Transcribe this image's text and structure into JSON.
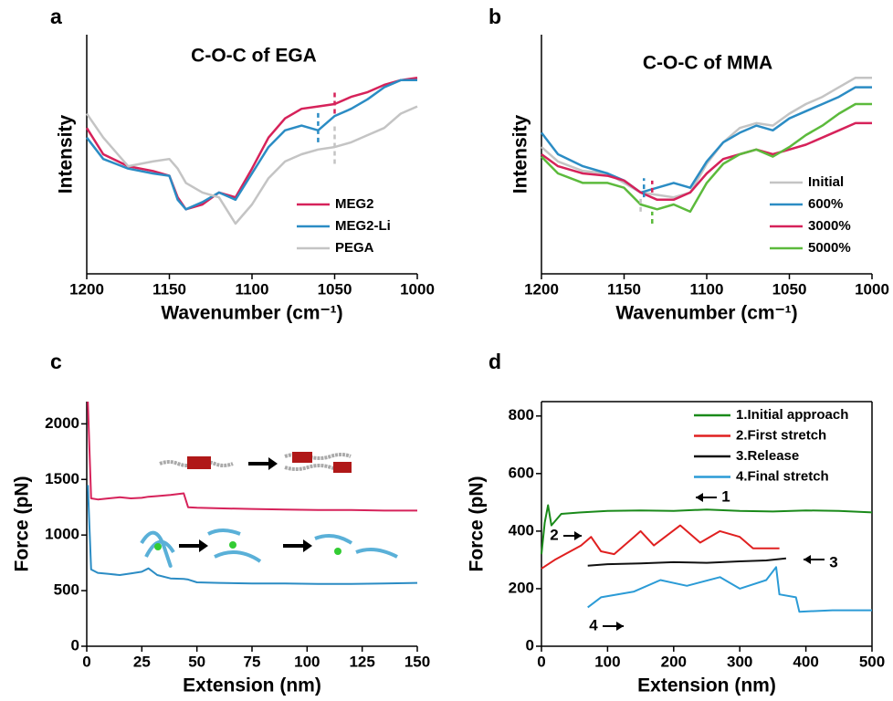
{
  "chart_data": [
    {
      "type": "line",
      "panel_label": "a",
      "title": "C-O-C of EGA",
      "xlabel": "Wavenumber (cm⁻¹)",
      "ylabel": "Intensity",
      "xlim": [
        1200,
        1000
      ],
      "xticks": [
        1200,
        1150,
        1100,
        1050,
        1000
      ],
      "ylim": [
        0,
        10
      ],
      "legend": "lower right",
      "box": false,
      "x": [
        1200,
        1190,
        1175,
        1160,
        1150,
        1145,
        1140,
        1130,
        1120,
        1110,
        1100,
        1090,
        1080,
        1070,
        1060,
        1050,
        1040,
        1030,
        1020,
        1010,
        1000
      ],
      "series": [
        {
          "name": "MEG2",
          "color": "#d6225a",
          "values": [
            6.1,
            5.0,
            4.5,
            4.3,
            4.1,
            3.2,
            2.7,
            2.9,
            3.4,
            3.2,
            4.4,
            5.7,
            6.5,
            6.9,
            7.0,
            7.1,
            7.4,
            7.6,
            7.9,
            8.1,
            8.2
          ]
        },
        {
          "name": "MEG2-Li",
          "color": "#2b8cc4",
          "values": [
            5.7,
            4.8,
            4.4,
            4.2,
            4.1,
            3.1,
            2.7,
            3.0,
            3.4,
            3.1,
            4.2,
            5.3,
            6.0,
            6.2,
            6.0,
            6.6,
            6.9,
            7.3,
            7.8,
            8.1,
            8.1
          ]
        },
        {
          "name": "PEGA",
          "color": "#c4c4c4",
          "values": [
            6.7,
            5.7,
            4.5,
            4.7,
            4.8,
            4.4,
            3.8,
            3.4,
            3.2,
            2.1,
            2.9,
            4.0,
            4.7,
            5.0,
            5.2,
            5.3,
            5.5,
            5.8,
            6.1,
            6.7,
            7.0
          ]
        }
      ],
      "guides": [
        {
          "x": 1060,
          "y": [
            5.5,
            6.8
          ],
          "color": "#2b8cc4"
        },
        {
          "x": 1050,
          "y": [
            6.7,
            7.7
          ],
          "color": "#d6225a"
        },
        {
          "x": 1050,
          "y": [
            4.6,
            6.3
          ],
          "color": "#c4c4c4"
        }
      ]
    },
    {
      "type": "line",
      "panel_label": "b",
      "title": "C-O-C of MMA",
      "xlabel": "Wavenumber (cm⁻¹)",
      "ylabel": "Intensity",
      "xlim": [
        1200,
        1000
      ],
      "xticks": [
        1200,
        1150,
        1100,
        1050,
        1000
      ],
      "ylim": [
        0,
        10
      ],
      "legend": "lower right",
      "box": false,
      "x": [
        1200,
        1190,
        1175,
        1160,
        1150,
        1140,
        1130,
        1120,
        1110,
        1100,
        1090,
        1080,
        1070,
        1060,
        1050,
        1040,
        1030,
        1020,
        1010,
        1000
      ],
      "series": [
        {
          "name": "Initial",
          "color": "#c4c4c4",
          "values": [
            5.3,
            4.7,
            4.3,
            4.2,
            3.8,
            3.4,
            3.3,
            3.2,
            3.4,
            4.6,
            5.5,
            6.1,
            6.3,
            6.2,
            6.7,
            7.1,
            7.4,
            7.8,
            8.2,
            8.2
          ]
        },
        {
          "name": "600%",
          "color": "#2b8cc4",
          "values": [
            5.9,
            5.0,
            4.5,
            4.2,
            3.9,
            3.4,
            3.6,
            3.8,
            3.6,
            4.7,
            5.5,
            5.9,
            6.2,
            6.0,
            6.5,
            6.8,
            7.1,
            7.4,
            7.8,
            7.8
          ]
        },
        {
          "name": "3000%",
          "color": "#d6225a",
          "values": [
            5.0,
            4.5,
            4.2,
            4.1,
            3.9,
            3.4,
            3.1,
            3.1,
            3.4,
            4.2,
            4.8,
            5.0,
            5.2,
            5.0,
            5.2,
            5.4,
            5.7,
            6.0,
            6.3,
            6.3
          ]
        },
        {
          "name": "5000%",
          "color": "#5cba3c",
          "values": [
            4.9,
            4.2,
            3.8,
            3.8,
            3.6,
            2.9,
            2.7,
            2.9,
            2.6,
            3.8,
            4.6,
            5.0,
            5.2,
            4.9,
            5.3,
            5.8,
            6.2,
            6.7,
            7.1,
            7.1
          ]
        }
      ],
      "guides": [
        {
          "x": 1138,
          "y": [
            3.2,
            4.0
          ],
          "color": "#2b8cc4"
        },
        {
          "x": 1140,
          "y": [
            2.6,
            3.2
          ],
          "color": "#c4c4c4"
        },
        {
          "x": 1133,
          "y": [
            3.4,
            3.9
          ],
          "color": "#d6225a"
        },
        {
          "x": 1133,
          "y": [
            2.1,
            2.6
          ],
          "color": "#5cba3c"
        }
      ]
    },
    {
      "type": "line",
      "panel_label": "c",
      "xlabel": "Extension (nm)",
      "ylabel": "Force (pN)",
      "xlim": [
        0,
        150
      ],
      "xticks": [
        0,
        25,
        50,
        75,
        100,
        125,
        150
      ],
      "ylim": [
        0,
        2200
      ],
      "yticks": [
        0,
        500,
        1000,
        1500,
        2000
      ],
      "box": false,
      "x": [
        0.5,
        2,
        5,
        10,
        15,
        20,
        25,
        28,
        32,
        38,
        44,
        46,
        50,
        60,
        75,
        90,
        105,
        120,
        135,
        150
      ],
      "series": [
        {
          "color": "#d6225a",
          "values": [
            2200,
            1330,
            1320,
            1330,
            1340,
            1330,
            1335,
            1345,
            1350,
            1360,
            1375,
            1250,
            1245,
            1240,
            1235,
            1230,
            1225,
            1225,
            1220,
            1220
          ]
        },
        {
          "color": "#2b8cc4",
          "values": [
            1450,
            690,
            660,
            650,
            640,
            655,
            670,
            700,
            640,
            610,
            605,
            600,
            575,
            570,
            565,
            565,
            560,
            560,
            565,
            570
          ]
        }
      ]
    },
    {
      "type": "line",
      "panel_label": "d",
      "xlabel": "Extension (nm)",
      "ylabel": "Force (pN)",
      "xlim": [
        0,
        500
      ],
      "xticks": [
        0,
        100,
        200,
        300,
        400,
        500
      ],
      "ylim": [
        0,
        850
      ],
      "yticks": [
        0,
        200,
        400,
        600,
        800
      ],
      "legend": "upper right",
      "box": true,
      "series": [
        {
          "name": "1.Initial approach",
          "color": "#1a8a1a",
          "x": [
            0,
            5,
            10,
            15,
            30,
            60,
            100,
            150,
            200,
            250,
            300,
            350,
            400,
            450,
            500
          ],
          "values": [
            320,
            430,
            490,
            420,
            460,
            465,
            470,
            472,
            470,
            475,
            470,
            468,
            472,
            470,
            465
          ]
        },
        {
          "name": "2.First stretch",
          "color": "#e02020",
          "x": [
            0,
            20,
            60,
            75,
            90,
            110,
            140,
            150,
            170,
            210,
            240,
            270,
            300,
            320,
            360
          ],
          "values": [
            270,
            300,
            350,
            380,
            330,
            320,
            380,
            400,
            350,
            420,
            360,
            400,
            380,
            340,
            340
          ]
        },
        {
          "name": "3.Release",
          "color": "#111111",
          "x": [
            70,
            100,
            150,
            200,
            250,
            300,
            340,
            370
          ],
          "values": [
            280,
            285,
            288,
            292,
            290,
            295,
            298,
            305
          ]
        },
        {
          "name": "4.Final stretch",
          "color": "#2b9bd6",
          "x": [
            70,
            90,
            140,
            180,
            220,
            270,
            300,
            340,
            355,
            360,
            385,
            390,
            440,
            500
          ],
          "values": [
            135,
            170,
            190,
            230,
            210,
            240,
            200,
            230,
            275,
            180,
            170,
            120,
            125,
            125
          ]
        }
      ],
      "annotations": [
        "1",
        "2",
        "3",
        "4"
      ]
    }
  ]
}
